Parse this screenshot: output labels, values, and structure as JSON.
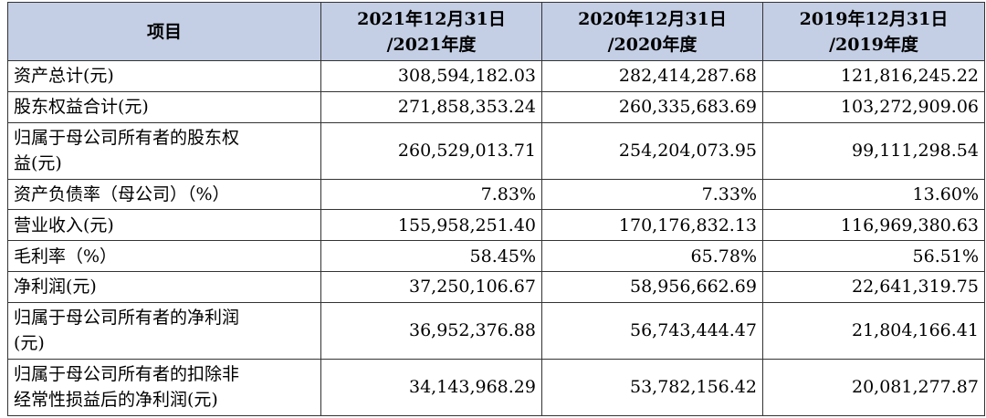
{
  "table": {
    "header": {
      "item": "项目",
      "col_2021": [
        "2021年12月31日",
        "/2021年度"
      ],
      "col_2020": [
        "2020年12月31日",
        "/2020年度"
      ],
      "col_2019": [
        "2019年12月31日",
        "/2019年度"
      ]
    },
    "rows": [
      {
        "label": [
          "资产总计(元)"
        ],
        "values": [
          "308,594,182.03",
          "282,414,287.68",
          "121,816,245.22"
        ]
      },
      {
        "label": [
          "股东权益合计(元)"
        ],
        "values": [
          "271,858,353.24",
          "260,335,683.69",
          "103,272,909.06"
        ]
      },
      {
        "label": [
          "归属于母公司所有者的股东权",
          "益(元)"
        ],
        "values": [
          "260,529,013.71",
          "254,204,073.95",
          "99,111,298.54"
        ]
      },
      {
        "label": [
          "资产负债率（母公司）（%）"
        ],
        "values": [
          "7.83%",
          "7.33%",
          "13.60%"
        ]
      },
      {
        "label": [
          "营业收入(元)"
        ],
        "values": [
          "155,958,251.40",
          "170,176,832.13",
          "116,969,380.63"
        ]
      },
      {
        "label": [
          "毛利率（%）"
        ],
        "values": [
          "58.45%",
          "65.78%",
          "56.51%"
        ]
      },
      {
        "label": [
          "净利润(元)"
        ],
        "values": [
          "37,250,106.67",
          "58,956,662.69",
          "22,641,319.75"
        ]
      },
      {
        "label": [
          "归属于母公司所有者的净利润",
          "(元)"
        ],
        "values": [
          "36,952,376.88",
          "56,743,444.47",
          "21,804,166.41"
        ]
      },
      {
        "label": [
          "归属于母公司所有者的扣除非",
          "经常性损益后的净利润(元)"
        ],
        "values": [
          "34,143,968.29",
          "53,782,156.42",
          "20,081,277.87"
        ]
      }
    ]
  },
  "colors": {
    "header_bg": "#c4cfe5",
    "border": "#333333",
    "text": "#000000"
  }
}
